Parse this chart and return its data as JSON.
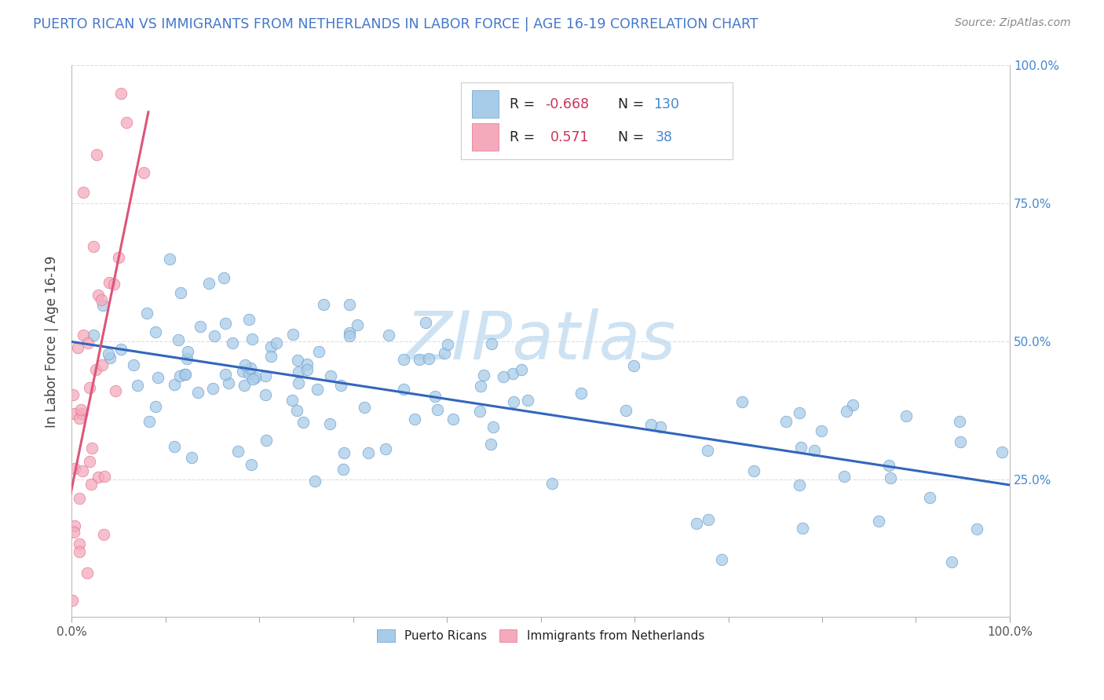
{
  "title": "PUERTO RICAN VS IMMIGRANTS FROM NETHERLANDS IN LABOR FORCE | AGE 16-19 CORRELATION CHART",
  "source_text": "Source: ZipAtlas.com",
  "ylabel": "In Labor Force | Age 16-19",
  "blue_color": "#a8cce8",
  "blue_edge_color": "#6699cc",
  "pink_color": "#f4aabb",
  "pink_edge_color": "#e07090",
  "blue_line_color": "#3366bb",
  "pink_line_color": "#dd5577",
  "watermark_text": "ZIPatlas",
  "watermark_color": "#c5ddf0",
  "R_blue": -0.668,
  "N_blue": 130,
  "R_pink": 0.571,
  "N_pink": 38,
  "seed": 42,
  "background_color": "#ffffff",
  "grid_color": "#dddddd",
  "title_color": "#4477cc",
  "axis_label_color": "#444444",
  "right_label_color": "#4488cc",
  "legend_R_label_color": "#222222",
  "legend_R_value_color": "#cc3355",
  "legend_N_value_color": "#4488cc",
  "legend_box_color": "#eeeeee",
  "source_color": "#888888",
  "bottom_legend_label_color": "#222222"
}
